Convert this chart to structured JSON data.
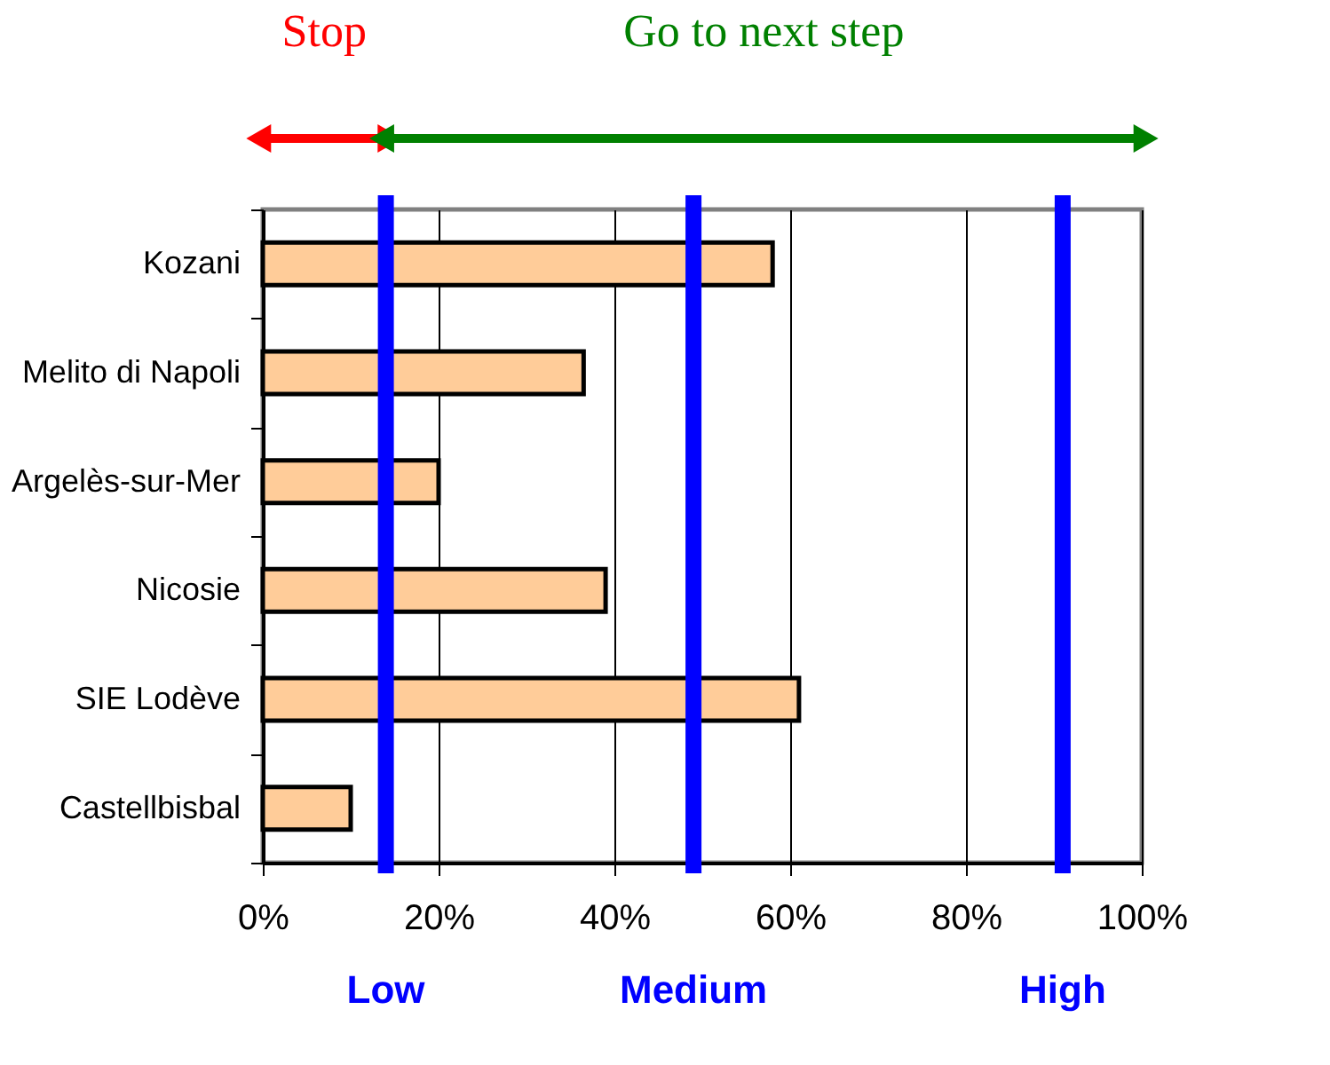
{
  "chart_data": {
    "type": "bar",
    "orientation": "horizontal",
    "categories": [
      "Kozani",
      "Melito di Napoli",
      "Argelès-sur-Mer",
      "Nicosie",
      "SIE Lodève",
      "Castellbisbal"
    ],
    "values": [
      58,
      36.5,
      20,
      39,
      61,
      10
    ],
    "color": "#ffcc99",
    "xlim": [
      0,
      100
    ],
    "xticks": [
      {
        "value": 0,
        "label": "0%"
      },
      {
        "value": 20,
        "label": "20%"
      },
      {
        "value": 40,
        "label": "40%"
      },
      {
        "value": 60,
        "label": "60%"
      },
      {
        "value": 80,
        "label": "80%"
      },
      {
        "value": 100,
        "label": "100%"
      }
    ],
    "grid": "x",
    "ref_lines": [
      {
        "axis": "x",
        "value": 14,
        "label": "Low",
        "color": "#0000ff"
      },
      {
        "axis": "x",
        "value": 49,
        "label": "Medium",
        "color": "#0000ff"
      },
      {
        "axis": "x",
        "value": 91,
        "label": "High",
        "color": "#0000ff"
      }
    ],
    "annotations": [
      "Stop",
      "Go to next step"
    ]
  }
}
